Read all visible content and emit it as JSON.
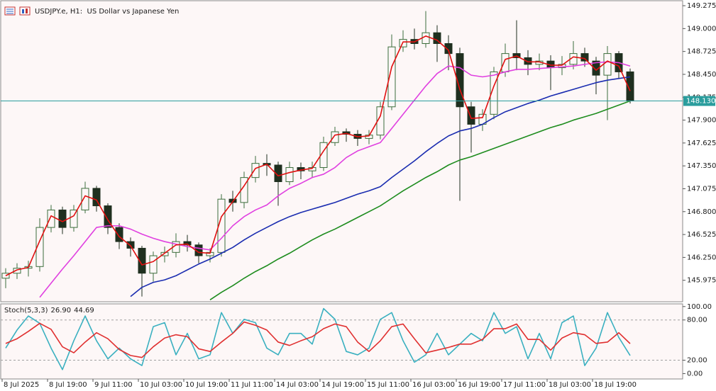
{
  "chart_data": [
    {
      "type": "candlestick",
      "title": "USDJPY.e, H1:  US Dollar vs Japanese Yen",
      "categories": [
        "8 Jul 2025",
        null,
        null,
        null,
        "8 Jul 19:00",
        null,
        null,
        null,
        "9 Jul 11:00",
        null,
        null,
        null,
        "10 Jul 03:00",
        null,
        null,
        null,
        "10 Jul 19:00",
        null,
        null,
        null,
        "11 Jul 11:00",
        null,
        null,
        null,
        "14 Jul 03:00",
        null,
        null,
        null,
        "14 Jul 19:00",
        null,
        null,
        null,
        "15 Jul 11:00",
        null,
        null,
        null,
        "16 Jul 03:00",
        null,
        null,
        null,
        "16 Jul 19:00",
        null,
        null,
        null,
        "17 Jul 11:00",
        null,
        null,
        null,
        "18 Jul 03:00",
        null,
        null,
        null,
        "18 Jul 19:00",
        null,
        null,
        null
      ],
      "open": [
        146.0,
        146.06,
        146.12,
        146.14,
        146.61,
        146.82,
        146.61,
        146.82,
        147.08,
        146.87,
        146.61,
        146.44,
        146.36,
        146.06,
        146.27,
        146.31,
        146.44,
        146.4,
        146.27,
        146.31,
        146.95,
        146.91,
        147.21,
        147.38,
        147.36,
        147.16,
        147.33,
        147.29,
        147.33,
        147.63,
        147.76,
        147.73,
        147.68,
        147.72,
        148.06,
        148.78,
        148.87,
        148.82,
        148.95,
        148.82,
        148.7,
        148.06,
        147.85,
        147.97,
        148.48,
        148.7,
        148.65,
        148.57,
        148.61,
        148.53,
        148.57,
        148.7,
        148.61,
        148.44,
        148.7,
        148.48
      ],
      "high": [
        146.12,
        146.18,
        146.21,
        146.72,
        146.88,
        146.86,
        146.88,
        147.16,
        147.11,
        146.9,
        146.66,
        146.49,
        146.39,
        146.32,
        146.38,
        146.54,
        146.52,
        146.43,
        146.36,
        147.01,
        147.05,
        147.28,
        147.47,
        147.49,
        147.4,
        147.4,
        147.39,
        147.4,
        147.7,
        147.82,
        147.8,
        147.78,
        147.78,
        148.12,
        148.93,
        148.98,
        149.0,
        149.21,
        149.04,
        148.92,
        148.77,
        148.12,
        148.03,
        148.54,
        148.82,
        149.1,
        148.74,
        148.7,
        148.68,
        148.67,
        148.85,
        148.77,
        148.66,
        148.79,
        148.73,
        148.52
      ],
      "low": [
        145.88,
        145.99,
        146.02,
        146.08,
        146.55,
        146.53,
        146.56,
        146.78,
        146.8,
        146.53,
        146.35,
        146.26,
        145.78,
        145.96,
        146.19,
        146.25,
        146.32,
        146.18,
        146.19,
        146.26,
        146.8,
        146.84,
        147.15,
        147.23,
        146.87,
        147.12,
        147.19,
        147.21,
        147.29,
        147.59,
        147.64,
        147.59,
        147.61,
        147.67,
        148.02,
        148.72,
        148.75,
        148.77,
        148.6,
        148.5,
        146.93,
        147.51,
        147.77,
        147.91,
        148.42,
        148.5,
        148.44,
        148.5,
        148.26,
        148.44,
        148.51,
        148.54,
        148.21,
        147.9,
        148.4,
        148.1
      ],
      "close": [
        146.06,
        146.12,
        146.14,
        146.61,
        146.82,
        146.61,
        146.82,
        147.08,
        146.87,
        146.61,
        146.44,
        146.36,
        146.06,
        146.27,
        146.31,
        146.44,
        146.4,
        146.27,
        146.31,
        146.95,
        146.91,
        147.21,
        147.38,
        147.36,
        147.16,
        147.33,
        147.29,
        147.33,
        147.63,
        147.76,
        147.73,
        147.68,
        147.72,
        148.06,
        148.78,
        148.87,
        148.82,
        148.95,
        148.82,
        148.7,
        148.06,
        147.85,
        147.97,
        148.48,
        148.7,
        148.65,
        148.57,
        148.61,
        148.53,
        148.57,
        148.7,
        148.61,
        148.44,
        148.7,
        148.48,
        148.13
      ],
      "up_color": "#3c6e3c",
      "down_color": "#1f2f1f",
      "series": [
        {
          "color": "#1e8c1e",
          "values": [
            null,
            null,
            null,
            null,
            null,
            null,
            null,
            null,
            null,
            null,
            null,
            null,
            null,
            null,
            null,
            null,
            null,
            null,
            145.74,
            145.83,
            145.91,
            146.0,
            146.08,
            146.15,
            146.23,
            146.3,
            146.38,
            146.46,
            146.53,
            146.59,
            146.66,
            146.73,
            146.8,
            146.87,
            146.96,
            147.05,
            147.13,
            147.21,
            147.28,
            147.36,
            147.42,
            147.46,
            147.51,
            147.56,
            147.61,
            147.66,
            147.71,
            147.76,
            147.81,
            147.85,
            147.9,
            147.94,
            147.98,
            148.03,
            148.08,
            148.13
          ]
        },
        {
          "color": "#1a2cb0",
          "values": [
            null,
            null,
            null,
            null,
            null,
            null,
            null,
            null,
            null,
            null,
            null,
            145.78,
            145.89,
            145.95,
            145.98,
            146.03,
            146.1,
            146.17,
            146.23,
            146.3,
            146.37,
            146.46,
            146.54,
            146.61,
            146.68,
            146.74,
            146.79,
            146.83,
            146.87,
            146.91,
            146.96,
            147.01,
            147.05,
            147.1,
            147.21,
            147.31,
            147.41,
            147.52,
            147.62,
            147.71,
            147.77,
            147.8,
            147.85,
            147.93,
            148.0,
            148.05,
            148.1,
            148.14,
            148.19,
            148.23,
            148.27,
            148.31,
            148.35,
            148.38,
            148.4,
            148.42
          ]
        },
        {
          "color": "#e040e0",
          "values": [
            null,
            null,
            null,
            145.77,
            145.94,
            146.11,
            146.27,
            146.44,
            146.61,
            146.63,
            146.63,
            146.59,
            146.53,
            146.48,
            146.44,
            146.41,
            146.38,
            146.36,
            146.34,
            146.48,
            146.63,
            146.74,
            146.82,
            146.88,
            146.99,
            147.08,
            147.14,
            147.21,
            147.25,
            147.33,
            147.45,
            147.53,
            147.58,
            147.63,
            147.8,
            147.97,
            148.14,
            148.31,
            148.46,
            148.55,
            148.53,
            148.44,
            148.42,
            148.44,
            148.48,
            148.51,
            148.51,
            148.52,
            148.53,
            148.54,
            148.55,
            148.57,
            148.59,
            148.6,
            148.59,
            148.55
          ]
        },
        {
          "color": "#e01010",
          "values": [
            146.03,
            146.1,
            146.13,
            146.45,
            146.75,
            146.68,
            146.75,
            146.99,
            146.94,
            146.7,
            146.5,
            146.39,
            146.16,
            146.2,
            146.3,
            146.4,
            146.41,
            146.31,
            146.3,
            146.74,
            146.92,
            147.11,
            147.32,
            147.37,
            147.23,
            147.27,
            147.3,
            147.32,
            147.53,
            147.72,
            147.74,
            147.7,
            147.71,
            147.95,
            148.54,
            148.84,
            148.84,
            148.91,
            148.86,
            148.74,
            148.27,
            147.92,
            147.93,
            148.31,
            148.63,
            148.67,
            148.6,
            148.6,
            148.56,
            148.56,
            148.66,
            148.64,
            148.5,
            148.61,
            148.55,
            148.25
          ]
        }
      ],
      "ylim": [
        145.717,
        149.335
      ],
      "yticks": [
        149.275,
        {
          "value": 149,
          "label": "149.000"
        },
        148.725,
        {
          "value": 148.45,
          "label": "148.450"
        },
        148.175,
        {
          "value": 147.9,
          "label": "147.900"
        },
        147.625,
        {
          "value": 147.35,
          "label": "147.350"
        },
        147.075,
        {
          "value": 146.8,
          "label": "146.800"
        },
        146.525,
        {
          "value": 146.25,
          "label": "146.250"
        },
        145.975
      ],
      "current_price": {
        "value": 148.13,
        "label": "148.130",
        "color": "#2a9d9d"
      },
      "grid": false
    },
    {
      "type": "line",
      "title": "Stoch(5,3,3)",
      "readout": [
        {
          "value": 26.9,
          "label": "26.90"
        },
        44.69
      ],
      "series": [
        {
          "color": "#3ab0c0",
          "values": [
            38,
            65,
            86,
            75,
            38,
            6,
            49,
            86,
            49,
            22,
            38,
            22,
            12,
            70,
            76,
            28,
            60,
            22,
            28,
            91,
            60,
            81,
            76,
            38,
            28,
            60,
            60,
            44,
            97,
            81,
            33,
            28,
            38,
            81,
            91,
            49,
            17,
            28,
            60,
            28,
            44,
            60,
            49,
            91,
            60,
            70,
            22,
            60,
            22,
            76,
            86,
            12,
            38,
            91,
            54,
            26.9
          ]
        },
        {
          "color": "#e03030",
          "values": [
            45,
            52,
            63,
            75,
            66,
            40,
            31,
            47,
            61,
            52,
            36,
            27,
            24,
            40,
            53,
            58,
            55,
            37,
            33,
            47,
            60,
            77,
            72,
            65,
            47,
            42,
            49,
            55,
            67,
            74,
            70,
            47,
            33,
            49,
            70,
            74,
            52,
            31,
            35,
            39,
            44,
            44,
            51,
            67,
            67,
            74,
            51,
            51,
            35,
            53,
            61,
            58,
            45,
            47,
            61,
            44.69
          ]
        }
      ],
      "ylim": [
        -8,
        104
      ],
      "yticks": [
        {
          "value": 100,
          "label": "100.00"
        },
        {
          "value": 80,
          "label": "80.00"
        },
        {
          "value": 20,
          "label": "20.00"
        },
        {
          "value": 0,
          "label": "0.00"
        }
      ],
      "levels": [
        80,
        20
      ],
      "grid": false
    }
  ]
}
